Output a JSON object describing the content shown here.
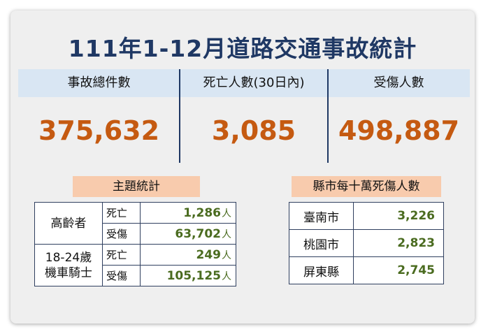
{
  "title": "111年1-12月道路交通事故統計",
  "summary": {
    "columns": [
      {
        "label": "事故總件數",
        "value": "375,632"
      },
      {
        "label": "死亡人數(30日內)",
        "value": "3,085"
      },
      {
        "label": "受傷人數",
        "value": "498,887"
      }
    ]
  },
  "theme": {
    "heading": "主題統計",
    "unit": "人",
    "groups": [
      {
        "name_lines": [
          "高齡者"
        ],
        "rows": [
          {
            "label": "死亡",
            "value": "1,286"
          },
          {
            "label": "受傷",
            "value": "63,702"
          }
        ]
      },
      {
        "name_lines": [
          "18-24歲",
          "機車騎士"
        ],
        "rows": [
          {
            "label": "死亡",
            "value": "249"
          },
          {
            "label": "受傷",
            "value": "105,125"
          }
        ]
      }
    ]
  },
  "county": {
    "heading": "縣市每十萬死傷人數",
    "rows": [
      {
        "name": "臺南市",
        "value": "3,226"
      },
      {
        "name": "桃園市",
        "value": "2,823"
      },
      {
        "name": "屏東縣",
        "value": "2,745"
      }
    ]
  },
  "colors": {
    "title": "#1f3864",
    "header_band": "#d9e6f3",
    "big_number": "#c55a11",
    "pill": "#f8cbad",
    "stat_number": "#4a6b1f"
  }
}
